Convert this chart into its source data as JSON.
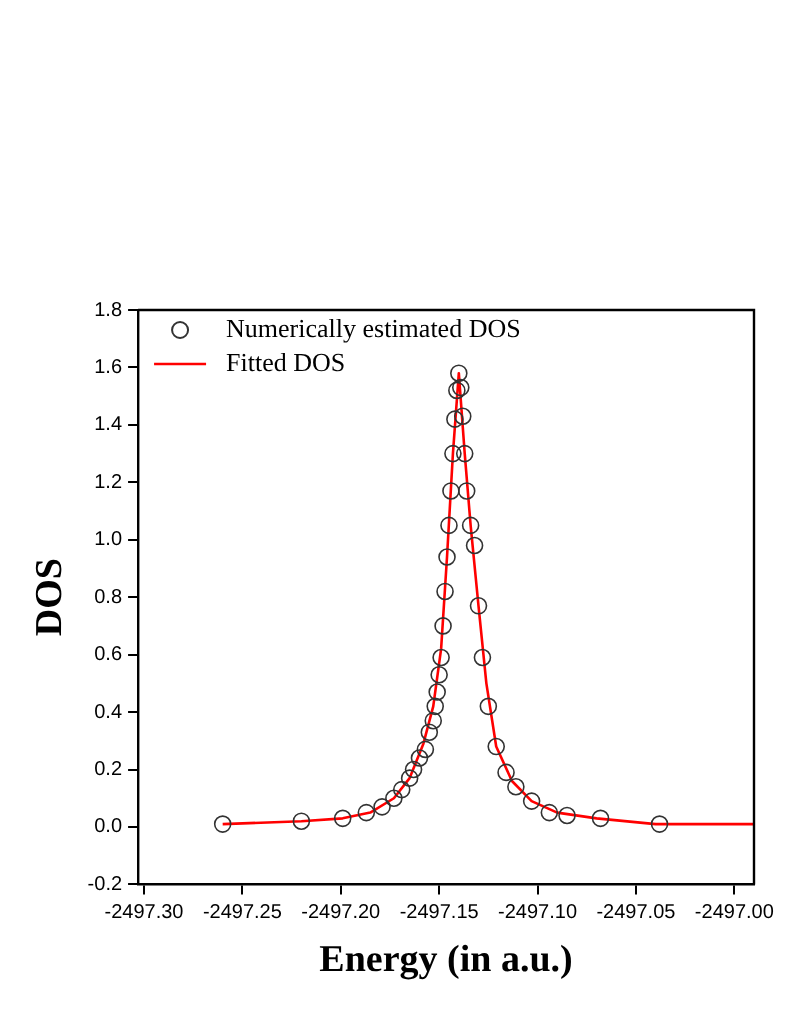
{
  "chart_data": {
    "type": "scatter",
    "xlabel": "Energy (in a.u.)",
    "ylabel": "DOS",
    "xlim": [
      -2497.303,
      -2496.99
    ],
    "xticks": [
      {
        "value": -2497.3,
        "label": "-2497.30"
      },
      {
        "value": -2497.25,
        "label": "-2497.25"
      },
      {
        "value": -2497.2,
        "label": "-2497.20"
      },
      {
        "value": -2497.15,
        "label": "-2497.15"
      },
      {
        "value": -2497.1,
        "label": "-2497.10"
      },
      {
        "value": -2497.05,
        "label": "-2497.05"
      },
      {
        "value": -2497.0,
        "label": "-2497.00"
      }
    ],
    "ylim": [
      -0.2,
      1.8
    ],
    "yticks": [
      {
        "value": -0.2,
        "label": "-0.2"
      },
      {
        "value": 0,
        "label": "0.0"
      },
      {
        "value": 0.2,
        "label": "0.2"
      },
      {
        "value": 0.4,
        "label": "0.4"
      },
      {
        "value": 0.6,
        "label": "0.6"
      },
      {
        "value": 0.8,
        "label": "0.8"
      },
      {
        "value": 1,
        "label": "1.0"
      },
      {
        "value": 1.2,
        "label": "1.2"
      },
      {
        "value": 1.4,
        "label": "1.4"
      },
      {
        "value": 1.6,
        "label": "1.6"
      },
      {
        "value": 1.8,
        "label": "1.8"
      }
    ],
    "legend": "top left",
    "grid": false,
    "series": [
      {
        "name": "Numerically estimated DOS",
        "type": "scatter",
        "marker": "circle",
        "color": "#333333",
        "x": [
          -2497.26,
          -2497.22,
          -2497.199,
          -2497.187,
          -2497.179,
          -2497.173,
          -2497.169,
          -2497.165,
          -2497.163,
          -2497.16,
          -2497.157,
          -2497.155,
          -2497.153,
          -2497.152,
          -2497.151,
          -2497.15,
          -2497.149,
          -2497.148,
          -2497.147,
          -2497.146,
          -2497.145,
          -2497.144,
          -2497.143,
          -2497.142,
          -2497.141,
          -2497.14,
          -2497.139,
          -2497.138,
          -2497.137,
          -2497.136,
          -2497.134,
          -2497.132,
          -2497.13,
          -2497.128,
          -2497.125,
          -2497.121,
          -2497.116,
          -2497.111,
          -2497.103,
          -2497.094,
          -2497.085,
          -2497.068,
          -2497.038
        ],
        "values": [
          0.01,
          0.02,
          0.03,
          0.05,
          0.07,
          0.1,
          0.13,
          0.17,
          0.2,
          0.24,
          0.27,
          0.33,
          0.37,
          0.42,
          0.47,
          0.53,
          0.59,
          0.7,
          0.82,
          0.94,
          1.05,
          1.17,
          1.3,
          1.42,
          1.52,
          1.58,
          1.53,
          1.43,
          1.3,
          1.17,
          1.05,
          0.98,
          0.77,
          0.59,
          0.42,
          0.28,
          0.19,
          0.14,
          0.09,
          0.05,
          0.04,
          0.03,
          0.01
        ]
      },
      {
        "name": "Fitted DOS",
        "type": "line",
        "marker": "none",
        "line_style": "solid",
        "color": "#ff0000",
        "x": [
          -2497.26,
          -2497.22,
          -2497.199,
          -2497.185,
          -2497.173,
          -2497.165,
          -2497.158,
          -2497.153,
          -2497.149,
          -2497.146,
          -2497.143,
          -2497.14,
          -2497.137,
          -2497.134,
          -2497.13,
          -2497.126,
          -2497.121,
          -2497.113,
          -2497.103,
          -2497.09,
          -2497.07,
          -2497.04,
          -2496.99
        ],
        "values": [
          0.01,
          0.02,
          0.03,
          0.05,
          0.1,
          0.17,
          0.29,
          0.42,
          0.62,
          0.94,
          1.3,
          1.58,
          1.3,
          1.05,
          0.77,
          0.5,
          0.28,
          0.16,
          0.09,
          0.05,
          0.03,
          0.01,
          0.01
        ]
      }
    ]
  }
}
